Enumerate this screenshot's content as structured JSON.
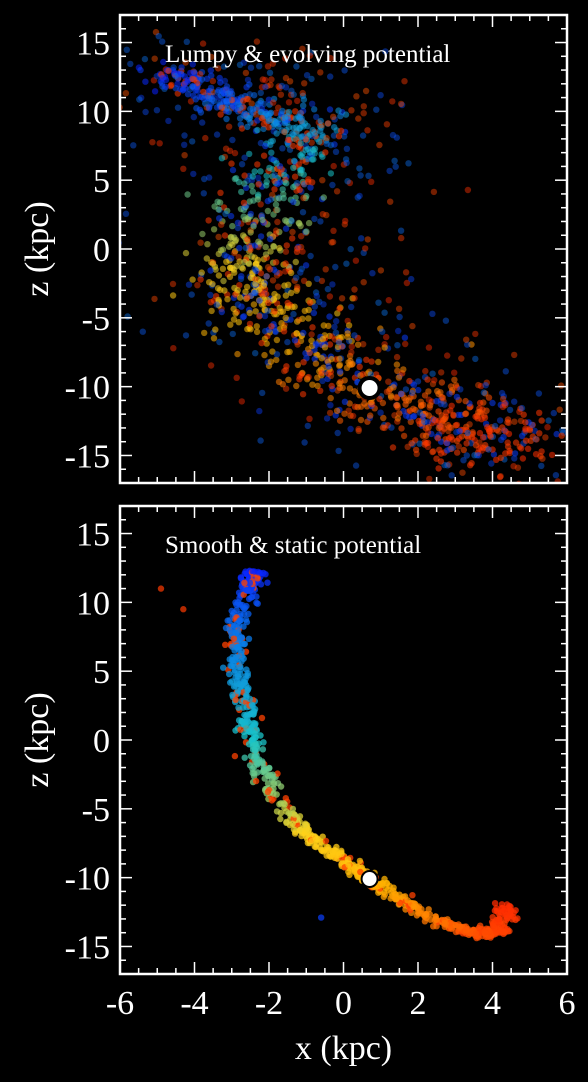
{
  "colors": {
    "background": "#000000",
    "axes": "#ffffff",
    "stream_colormap": [
      "#0a1fff",
      "#0a7fe8",
      "#19c4c8",
      "#ffd21a",
      "#ffb000",
      "#ff5a00",
      "#ff2a00"
    ],
    "progenitor_fill": "#ffffff",
    "progenitor_edge": "#000000"
  },
  "chart_data": [
    {
      "type": "scatter",
      "title": "Lumpy & evolving potential",
      "xlabel": "",
      "ylabel": "z (kpc)",
      "xlim": [
        -6,
        6
      ],
      "ylim": [
        -17,
        17
      ],
      "xticks": [
        "-6",
        "-4",
        "-2",
        "0",
        "2",
        "4",
        "6"
      ],
      "yticks": [
        "-15",
        "-10",
        "-5",
        "0",
        "5",
        "10",
        "15"
      ],
      "grid": false,
      "stream_track": [
        {
          "x": -4.8,
          "y": 12.8
        },
        {
          "x": -3.6,
          "y": 11.2
        },
        {
          "x": -2.4,
          "y": 10.0
        },
        {
          "x": -1.0,
          "y": 9.0
        },
        {
          "x": -1.4,
          "y": 6.5
        },
        {
          "x": -2.1,
          "y": 3.5
        },
        {
          "x": -2.6,
          "y": 0.0
        },
        {
          "x": -2.5,
          "y": -2.5
        },
        {
          "x": -1.8,
          "y": -5.0
        },
        {
          "x": -0.6,
          "y": -7.5
        },
        {
          "x": 0.7,
          "y": -10.1
        },
        {
          "x": 2.2,
          "y": -12.0
        },
        {
          "x": 3.6,
          "y": -13.5
        },
        {
          "x": 4.3,
          "y": -14.1
        }
      ],
      "stream_spread": 0.9,
      "debris_fraction": 0.35,
      "progenitor": {
        "x": 0.7,
        "y": -10.1
      }
    },
    {
      "type": "scatter",
      "title": "Smooth & static potential",
      "xlabel": "x (kpc)",
      "ylabel": "z (kpc)",
      "xlim": [
        -6,
        6
      ],
      "ylim": [
        -17,
        17
      ],
      "xticks": [
        "-6",
        "-4",
        "-2",
        "0",
        "2",
        "4",
        "6"
      ],
      "yticks": [
        "-15",
        "-10",
        "-5",
        "0",
        "5",
        "10",
        "15"
      ],
      "grid": false,
      "stream_track": [
        {
          "x": -2.4,
          "y": 12.3
        },
        {
          "x": -2.6,
          "y": 10.5
        },
        {
          "x": -2.9,
          "y": 8.0
        },
        {
          "x": -2.8,
          "y": 5.0
        },
        {
          "x": -2.6,
          "y": 2.0
        },
        {
          "x": -2.4,
          "y": -1.0
        },
        {
          "x": -1.9,
          "y": -4.0
        },
        {
          "x": -1.0,
          "y": -6.8
        },
        {
          "x": 0.0,
          "y": -8.8
        },
        {
          "x": 0.7,
          "y": -10.1
        },
        {
          "x": 1.6,
          "y": -11.8
        },
        {
          "x": 2.7,
          "y": -13.3
        },
        {
          "x": 3.6,
          "y": -14.1
        },
        {
          "x": 4.2,
          "y": -13.8
        },
        {
          "x": 4.35,
          "y": -12.0
        }
      ],
      "stream_spread": 0.15,
      "debris_fraction": 0.0,
      "outliers": [
        {
          "x": -4.9,
          "y": 11.0
        },
        {
          "x": -4.3,
          "y": 9.5
        },
        {
          "x": -0.6,
          "y": -12.9
        }
      ],
      "progenitor": {
        "x": 0.7,
        "y": -10.1
      }
    }
  ]
}
